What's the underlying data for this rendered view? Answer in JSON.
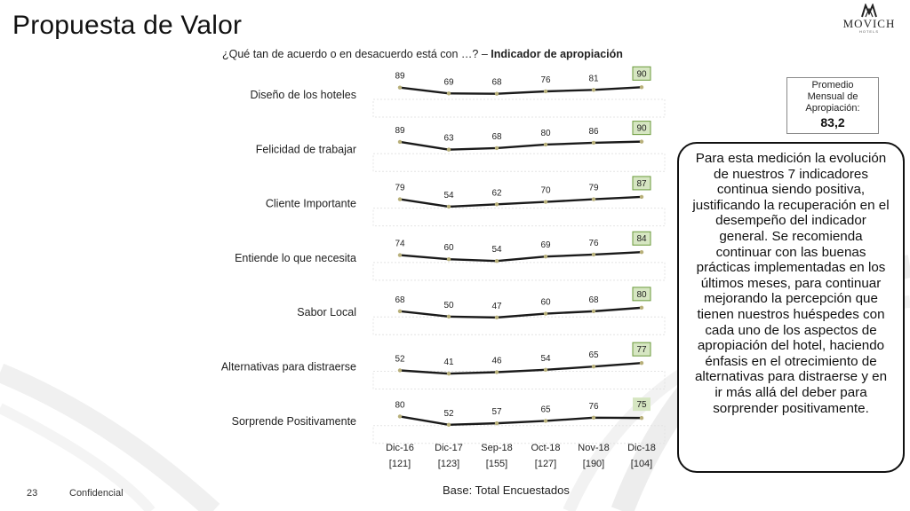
{
  "title": "Propuesta de Valor",
  "logo": {
    "name": "MOVICH",
    "sub": "HOTELS"
  },
  "subtitle": {
    "question": "¿Qué tan de acuerdo o en desacuerdo está con …? – ",
    "bold": "Indicador de apropiación"
  },
  "average": {
    "label": "Promedio Mensual de Apropiación:",
    "value": "83,2"
  },
  "note": "Para esta medición la evolución de nuestros 7 indicadores continua siendo positiva, justificando la recuperación en el desempeño del indicador general. Se recomienda continuar con las buenas prácticas implementadas en los últimos meses, para continuar mejorando la percepción que tienen nuestros huéspedes con cada uno de los aspectos de apropiación del hotel, haciendo énfasis en el otrecimiento de alternativas para distraerse y en ir más allá del deber para sorprender positivamente.",
  "colors": {
    "line": "#1a1a1a",
    "marker": "#b8b07a",
    "highlight_fill": "#d6e6c2",
    "highlight_border": "#6a9a3a",
    "swoosh": "#ededed"
  },
  "chart_data": {
    "type": "line",
    "periods": [
      "Dic-16",
      "Dic-17",
      "Sep-18",
      "Oct-18",
      "Nov-18",
      "Dic-18"
    ],
    "sample_sizes": [
      "[121]",
      "[123]",
      "[155]",
      "[127]",
      "[190]",
      "[104]"
    ],
    "ylim": [
      0,
      100
    ],
    "series": [
      {
        "name": "Diseño de los hoteles",
        "values": [
          89,
          69,
          68,
          76,
          81,
          90
        ]
      },
      {
        "name": "Felicidad de trabajar",
        "values": [
          89,
          63,
          68,
          80,
          86,
          90
        ]
      },
      {
        "name": "Cliente Importante",
        "values": [
          79,
          54,
          62,
          70,
          79,
          87
        ]
      },
      {
        "name": "Entiende lo que necesita",
        "values": [
          74,
          60,
          54,
          69,
          76,
          84
        ]
      },
      {
        "name": "Sabor Local",
        "values": [
          68,
          50,
          47,
          60,
          68,
          80
        ]
      },
      {
        "name": "Alternativas para distraerse",
        "values": [
          52,
          41,
          46,
          54,
          65,
          77
        ]
      },
      {
        "name": "Sorprende Positivamente",
        "values": [
          80,
          52,
          57,
          65,
          76,
          75
        ]
      }
    ],
    "highlighted_period": "Dic-18"
  },
  "footer": {
    "base": "Base: Total Encuestados",
    "page": "23",
    "confidential": "Confidencial"
  }
}
